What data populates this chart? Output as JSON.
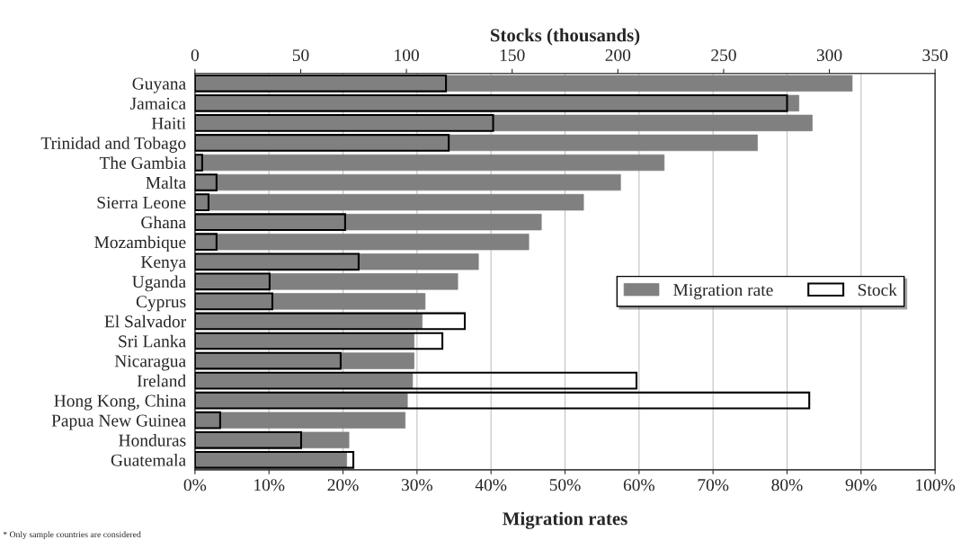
{
  "chart_data": {
    "type": "bar",
    "orientation": "horizontal",
    "categories": [
      "Guyana",
      "Jamaica",
      "Haiti",
      "Trinidad and Tobago",
      "The Gambia",
      "Malta",
      "Sierra Leone",
      "Ghana",
      "Mozambique",
      "Kenya",
      "Uganda",
      "Cyprus",
      "El Salvador",
      "Sri Lanka",
      "Nicaragua",
      "Ireland",
      "Hong Kong, China",
      "Papua New Guinea",
      "Honduras",
      "Guatemala"
    ],
    "series": [
      {
        "name": "Migration rate",
        "color": "#808080",
        "values": [
          88.8,
          81.6,
          83.4,
          76,
          63.4,
          57.5,
          52.5,
          46.8,
          45.1,
          38.3,
          35.5,
          31.1,
          30.7,
          29.6,
          29.6,
          29.4,
          28.7,
          28.4,
          20.8,
          20.5
        ]
      },
      {
        "name": "Stock",
        "color": "#000000",
        "axis": "x2",
        "values": [
          118.7,
          280,
          141,
          120,
          3.4,
          10.2,
          6.4,
          71,
          10.2,
          77.4,
          35.3,
          36.6,
          127.6,
          117,
          68.9,
          208.8,
          290.5,
          11.9,
          50.2,
          74.9
        ]
      }
    ],
    "xlabel": "Migration rates",
    "x2label": "Stocks (thousands)",
    "xlim": [
      0,
      100
    ],
    "xticks": [
      {
        "value": 0,
        "label": "0%"
      },
      {
        "value": 10,
        "label": "10%"
      },
      {
        "value": 20,
        "label": "20%"
      },
      {
        "value": 30,
        "label": "30%"
      },
      {
        "value": 40,
        "label": "40%"
      },
      {
        "value": 50,
        "label": "50%"
      },
      {
        "value": 60,
        "label": "60%"
      },
      {
        "value": 70,
        "label": "70%"
      },
      {
        "value": 80,
        "label": "80%"
      },
      {
        "value": 90,
        "label": "90%"
      },
      {
        "value": 100,
        "label": "100%"
      }
    ],
    "x2lim": [
      0,
      350
    ],
    "x2ticks": [
      0,
      50,
      100,
      150,
      200,
      250,
      300,
      350
    ],
    "grid": "x",
    "legend": "right",
    "annotations": [
      "* Only sample countries are considered"
    ]
  }
}
